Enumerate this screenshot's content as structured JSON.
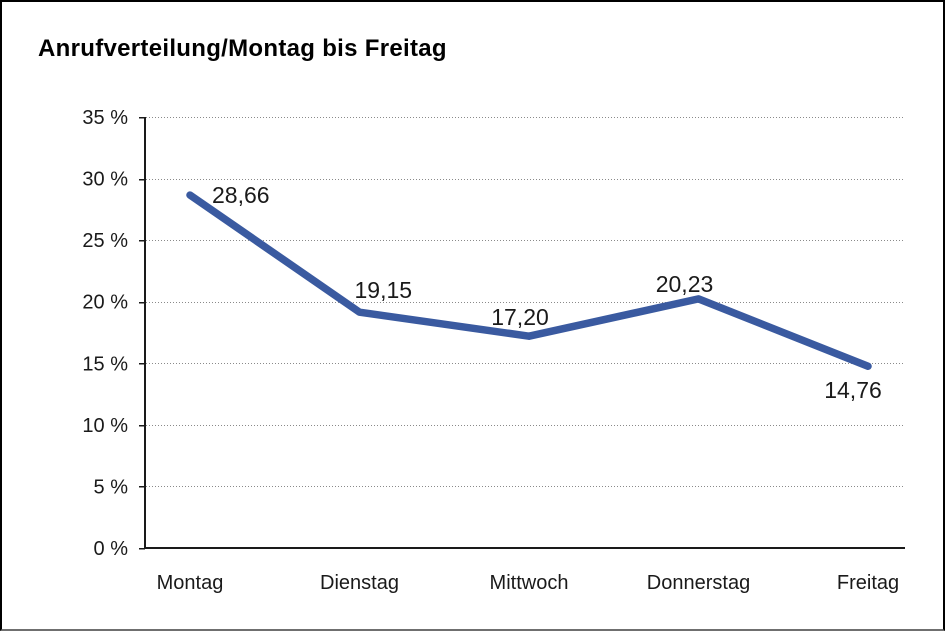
{
  "chart_data": {
    "type": "line",
    "title": "Anrufverteilung/Montag bis Freitag",
    "categories": [
      "Montag",
      "Dienstag",
      "Mittwoch",
      "Donnerstag",
      "Freitag"
    ],
    "series": [
      {
        "name": "Anrufverteilung",
        "values": [
          28.66,
          19.15,
          17.2,
          20.23,
          14.76
        ],
        "value_labels": [
          "28,66",
          "19,15",
          "17,20",
          "20,23",
          "14,76"
        ]
      }
    ],
    "xlabel": "",
    "ylabel": "",
    "ylim": [
      0,
      35
    ],
    "y_tick_step": 5,
    "y_ticks": [
      0,
      5,
      10,
      15,
      20,
      25,
      30,
      35
    ],
    "y_tick_labels": [
      "0 %",
      "5 %",
      "10 %",
      "15 %",
      "20 %",
      "25 %",
      "30 %",
      "35 %"
    ],
    "grid": "horizontal-dotted",
    "legend": "none",
    "colors": {
      "line": "#3A5AA0",
      "axis": "#1a1a1a",
      "gridline": "#8a8a8a",
      "text": "#1a1a1a",
      "title_text": "#000000",
      "background": "#ffffff",
      "frame_border": "#000000"
    }
  }
}
